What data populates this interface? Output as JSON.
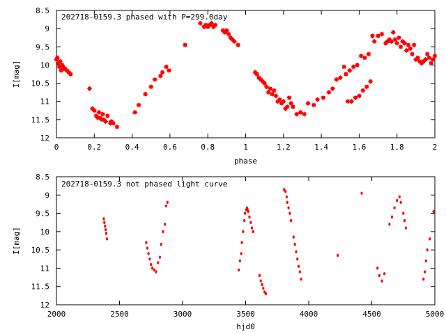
{
  "marker_color": "#ff0000",
  "frame_color": "#000000",
  "chart_data": [
    {
      "type": "scatter",
      "title": "202718-0159.3 phased with P=299.0day",
      "xlabel": "phase",
      "ylabel": "I[mag]",
      "xlim": [
        0,
        2
      ],
      "ylim": [
        8.5,
        12
      ],
      "y_inverted": true,
      "grid": false,
      "marker": "square-star",
      "x_ticks": [
        0,
        0.2,
        0.4,
        0.6,
        0.8,
        1,
        1.2,
        1.4,
        1.6,
        1.8,
        2
      ],
      "x_tick_labels": [
        "0",
        "0.2",
        "0.4",
        "0.6",
        "0.8",
        "1",
        "1.2",
        "1.4",
        "1.6",
        "1.8",
        "2"
      ],
      "y_ticks": [
        8.5,
        9,
        9.5,
        10,
        10.5,
        11,
        11.5,
        12
      ],
      "y_tick_labels": [
        "8.5",
        "9",
        "9.5",
        "10",
        "10.5",
        "11",
        "11.5",
        "12"
      ],
      "series": [
        {
          "x": [
            0.0,
            0.005,
            0.01,
            0.015,
            0.02,
            0.025,
            0.03,
            0.035,
            0.04,
            0.045,
            0.055,
            0.065,
            0.075,
            0.175,
            0.19,
            0.2,
            0.21,
            0.22,
            0.225,
            0.23,
            0.24,
            0.245,
            0.25,
            0.26,
            0.27,
            0.285,
            0.29,
            0.3,
            0.32,
            0.415,
            0.435,
            0.47,
            0.5,
            0.52,
            0.55,
            0.56,
            0.58,
            0.595,
            0.68,
            0.76,
            0.78,
            0.79,
            0.8,
            0.81,
            0.82,
            0.83,
            0.84,
            0.88,
            0.89,
            0.9,
            0.91,
            0.92,
            0.93,
            0.94,
            0.96,
            1.05,
            1.06,
            1.07,
            1.08,
            1.09,
            1.1,
            1.11,
            1.12,
            1.13,
            1.14,
            1.15,
            1.16,
            1.17,
            1.18,
            1.19,
            1.2,
            1.21,
            1.22,
            1.23,
            1.24,
            1.25,
            1.27,
            1.29,
            1.31,
            1.33,
            1.36,
            1.38,
            1.41,
            1.44,
            1.46,
            1.48,
            1.5,
            1.52,
            1.53,
            1.54,
            1.55,
            1.56,
            1.57,
            1.58,
            1.59,
            1.6,
            1.61,
            1.62,
            1.63,
            1.64,
            1.65,
            1.66,
            1.67,
            1.68,
            1.7,
            1.72,
            1.74,
            1.75,
            1.76,
            1.77,
            1.78,
            1.79,
            1.8,
            1.81,
            1.82,
            1.83,
            1.84,
            1.85,
            1.86,
            1.87,
            1.88,
            1.89,
            1.9,
            1.91,
            1.92,
            1.93,
            1.94,
            1.95,
            1.96,
            1.97,
            1.98,
            1.99,
            2.0
          ],
          "y": [
            9.85,
            9.8,
            9.95,
            10.05,
            9.9,
            10.15,
            10.0,
            10.05,
            10.1,
            10.1,
            10.15,
            10.2,
            10.25,
            10.65,
            11.2,
            11.25,
            11.4,
            11.45,
            11.3,
            11.45,
            11.5,
            11.35,
            11.5,
            11.55,
            11.4,
            11.6,
            11.55,
            11.6,
            11.7,
            11.3,
            11.1,
            10.8,
            10.6,
            10.4,
            10.3,
            10.2,
            10.05,
            10.15,
            9.45,
            8.85,
            8.95,
            8.9,
            8.95,
            8.9,
            8.85,
            8.95,
            8.9,
            9.05,
            9.1,
            9.05,
            9.15,
            9.25,
            9.3,
            9.35,
            9.45,
            10.2,
            10.25,
            10.35,
            10.4,
            10.45,
            10.5,
            10.6,
            10.75,
            10.65,
            10.8,
            10.7,
            10.85,
            11.0,
            10.95,
            11.05,
            11.0,
            11.2,
            11.15,
            10.9,
            11.05,
            11.15,
            11.35,
            11.3,
            11.35,
            11.05,
            11.1,
            10.95,
            10.9,
            10.75,
            10.65,
            10.4,
            10.35,
            10.05,
            10.25,
            11.0,
            10.15,
            11.0,
            10.05,
            10.9,
            10.0,
            10.85,
            9.75,
            10.7,
            9.8,
            10.6,
            9.7,
            10.45,
            9.2,
            9.35,
            9.2,
            9.15,
            9.4,
            9.35,
            9.3,
            9.35,
            9.1,
            9.3,
            9.4,
            9.25,
            9.5,
            9.35,
            9.4,
            9.6,
            9.45,
            9.55,
            9.7,
            9.45,
            9.85,
            9.8,
            9.9,
            9.95,
            9.9,
            9.85,
            9.7,
            9.8,
            9.95,
            9.85,
            9.75
          ]
        }
      ]
    },
    {
      "type": "scatter",
      "title": "202718-0159.3 not phased light curve",
      "xlabel": "hjd0",
      "ylabel": "I[mag]",
      "xlim": [
        2000,
        5000
      ],
      "ylim": [
        8.5,
        12
      ],
      "y_inverted": true,
      "grid": false,
      "marker": "dot",
      "x_ticks": [
        2000,
        2500,
        3000,
        3500,
        4000,
        4500,
        5000
      ],
      "x_tick_labels": [
        "2000",
        "2500",
        "3000",
        "3500",
        "4000",
        "4500",
        "5000"
      ],
      "y_ticks": [
        8.5,
        9,
        9.5,
        10,
        10.5,
        11,
        11.5,
        12
      ],
      "y_tick_labels": [
        "8.5",
        "9",
        "9.5",
        "10",
        "10.5",
        "11",
        "11.5",
        "12"
      ],
      "series": [
        {
          "x": [
            2375,
            2380,
            2385,
            2390,
            2395,
            2400,
            2712,
            2720,
            2730,
            2740,
            2750,
            2760,
            2775,
            2790,
            2805,
            2820,
            2830,
            2845,
            2860,
            2870,
            2880,
            3445,
            3455,
            3465,
            3470,
            3480,
            3490,
            3495,
            3505,
            3510,
            3515,
            3520,
            3530,
            3540,
            3550,
            3560,
            3610,
            3620,
            3630,
            3640,
            3650,
            3660,
            3805,
            3815,
            3825,
            3830,
            3840,
            3850,
            3860,
            3880,
            3890,
            3900,
            3910,
            3920,
            3930,
            3940,
            4230,
            4420,
            4545,
            4560,
            4580,
            4600,
            4640,
            4660,
            4680,
            4700,
            4720,
            4730,
            4750,
            4760,
            4770,
            4910,
            4920,
            4930,
            4940,
            4960,
            4990
          ],
          "y": [
            9.65,
            9.75,
            9.85,
            9.95,
            10.05,
            10.2,
            10.3,
            10.45,
            10.6,
            10.75,
            10.9,
            11.0,
            11.05,
            11.1,
            10.85,
            10.7,
            10.35,
            10.0,
            9.8,
            9.3,
            9.2,
            11.05,
            10.8,
            10.6,
            10.3,
            10.0,
            9.7,
            9.5,
            9.4,
            9.35,
            9.4,
            9.45,
            9.6,
            9.75,
            9.9,
            10.0,
            11.2,
            11.35,
            11.45,
            11.55,
            11.65,
            11.7,
            8.85,
            8.9,
            9.05,
            9.2,
            9.35,
            9.5,
            9.7,
            10.15,
            10.35,
            10.55,
            10.75,
            10.95,
            11.1,
            11.3,
            10.65,
            8.95,
            11.0,
            11.2,
            11.35,
            11.15,
            9.8,
            9.6,
            9.35,
            9.15,
            9.05,
            9.2,
            9.5,
            9.7,
            9.9,
            11.3,
            11.1,
            10.8,
            10.5,
            10.2,
            9.45
          ]
        }
      ]
    }
  ]
}
